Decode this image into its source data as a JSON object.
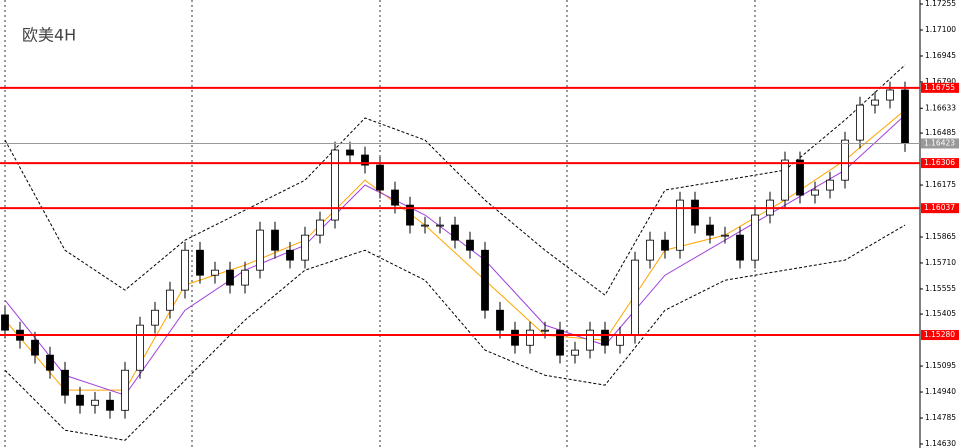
{
  "chart_data": {
    "type": "candlestick",
    "title": "欧美4H",
    "ylim": [
      1.14606,
      1.17279
    ],
    "yticks": [
      1.17255,
      {
        "value": 1.171,
        "label": "1.17100"
      },
      1.16945,
      {
        "value": 1.1679,
        "label": "1.16790"
      },
      1.16633,
      1.16485,
      1.16175,
      1.15865,
      {
        "value": 1.1571,
        "label": "1.15710"
      },
      1.15555,
      1.15405,
      1.15095,
      {
        "value": 1.1494,
        "label": "1.14940"
      },
      1.14785,
      {
        "value": 1.1463,
        "label": "1.14630"
      }
    ],
    "grid": true,
    "up_color": "#ffffff",
    "down_color": "#000000",
    "wick_color": "#000000",
    "open": [
      1.154,
      1.15309,
      1.15249,
      1.1516,
      1.1507,
      1.14921,
      1.14861,
      1.14891,
      1.14831,
      1.1507,
      1.15339,
      1.15428,
      1.15548,
      1.15786,
      1.15637,
      1.15667,
      1.15578,
      1.15667,
      1.15906,
      1.15786,
      1.15727,
      1.15876,
      1.15966,
      1.16384,
      1.16354,
      1.16294,
      1.16145,
      1.16055,
      1.15936,
      1.15936,
      1.15936,
      1.15846,
      1.15786,
      1.15428,
      1.15309,
      1.15219,
      1.15309,
      1.15309,
      1.1516,
      1.1519,
      1.15309,
      1.15219,
      1.15279,
      1.15727,
      1.15846,
      1.15786,
      1.16085,
      1.15936,
      1.15876,
      1.15876,
      1.15727,
      1.15996,
      1.16085,
      1.16324,
      1.16115,
      1.16145,
      1.16204,
      1.16443,
      1.16652,
      1.16682,
      1.16742
    ],
    "high": [
      1.1545,
      1.15359,
      1.15299,
      1.1521,
      1.1512,
      1.14971,
      1.14941,
      1.14941,
      1.1512,
      1.15389,
      1.15478,
      1.15598,
      1.15836,
      1.15836,
      1.15717,
      1.15717,
      1.15717,
      1.15956,
      1.15956,
      1.15836,
      1.15926,
      1.16016,
      1.16434,
      1.16434,
      1.16404,
      1.16344,
      1.16195,
      1.16105,
      1.15986,
      1.15986,
      1.15986,
      1.15896,
      1.15836,
      1.15478,
      1.15359,
      1.15359,
      1.15359,
      1.15359,
      1.1524,
      1.15359,
      1.15359,
      1.15329,
      1.15777,
      1.15896,
      1.15896,
      1.16135,
      1.16135,
      1.15986,
      1.15926,
      1.15926,
      1.16046,
      1.16135,
      1.16374,
      1.16374,
      1.16195,
      1.16254,
      1.16493,
      1.16702,
      1.16732,
      1.16792,
      1.16792
    ],
    "low": [
      1.15259,
      1.15199,
      1.1511,
      1.1502,
      1.14871,
      1.14811,
      1.14811,
      1.14781,
      1.14781,
      1.1502,
      1.15289,
      1.15378,
      1.15498,
      1.15587,
      1.15587,
      1.15528,
      1.15528,
      1.15617,
      1.15736,
      1.15677,
      1.15677,
      1.15826,
      1.15916,
      1.16304,
      1.16244,
      1.16095,
      1.16005,
      1.15886,
      1.15886,
      1.15886,
      1.15796,
      1.15736,
      1.15378,
      1.15259,
      1.15169,
      1.15169,
      1.15259,
      1.1511,
      1.1511,
      1.1514,
      1.15169,
      1.15169,
      1.15229,
      1.15677,
      1.15736,
      1.15736,
      1.15886,
      1.15826,
      1.15826,
      1.15677,
      1.15677,
      1.15946,
      1.16035,
      1.16065,
      1.16065,
      1.16095,
      1.16154,
      1.16393,
      1.16602,
      1.16632,
      1.16373
    ],
    "close": [
      1.15309,
      1.15249,
      1.1516,
      1.1507,
      1.14921,
      1.14861,
      1.14891,
      1.14831,
      1.1507,
      1.15339,
      1.15428,
      1.15548,
      1.15786,
      1.15637,
      1.15667,
      1.15578,
      1.15667,
      1.15906,
      1.15786,
      1.15727,
      1.15876,
      1.15966,
      1.16384,
      1.16354,
      1.16294,
      1.16145,
      1.16055,
      1.15936,
      1.15936,
      1.15936,
      1.15846,
      1.15786,
      1.15428,
      1.15309,
      1.15219,
      1.15309,
      1.15309,
      1.1516,
      1.1519,
      1.15309,
      1.15219,
      1.15279,
      1.15727,
      1.15846,
      1.15786,
      1.16085,
      1.15936,
      1.15876,
      1.15876,
      1.15727,
      1.15996,
      1.16085,
      1.16324,
      1.16115,
      1.16145,
      1.16204,
      1.16443,
      1.16652,
      1.16682,
      1.16742,
      1.16423
    ],
    "overlays": [
      {
        "color": "#000000",
        "dashed": true,
        "x": [
          0,
          4,
          8,
          12,
          16,
          20,
          24,
          28,
          32,
          36,
          40,
          44,
          48,
          52,
          56,
          60
        ],
        "values": [
          1.16443,
          1.15786,
          1.15548,
          1.15846,
          1.16025,
          1.16204,
          1.16575,
          1.16443,
          1.16085,
          1.15786,
          1.15518,
          1.16145,
          1.16204,
          1.16264,
          1.16563,
          1.16891
        ]
      },
      {
        "color": "#000000",
        "dashed": true,
        "x": [
          0,
          4,
          8,
          12,
          16,
          20,
          24,
          28,
          32,
          36,
          40,
          44,
          48,
          52,
          56,
          60
        ],
        "values": [
          1.1507,
          1.14712,
          1.14652,
          1.1501,
          1.15369,
          1.15667,
          1.15786,
          1.15607,
          1.1519,
          1.1504,
          1.14981,
          1.15428,
          1.15607,
          1.15667,
          1.15727,
          1.15936
        ]
      },
      {
        "color": "#ffa500",
        "dashed": false,
        "x": [
          0,
          4,
          8,
          12,
          16,
          20,
          24,
          28,
          32,
          36,
          40,
          44,
          48,
          52,
          56,
          60
        ],
        "values": [
          1.15369,
          1.14951,
          1.14951,
          1.15578,
          1.15697,
          1.15846,
          1.16204,
          1.15936,
          1.15607,
          1.15279,
          1.15249,
          1.15786,
          1.15876,
          1.16085,
          1.16324,
          1.16622
        ]
      },
      {
        "color": "#a040e0",
        "dashed": false,
        "x": [
          0,
          4,
          8,
          12,
          16,
          20,
          24,
          28,
          32,
          36,
          40,
          44,
          48,
          52,
          56,
          60
        ],
        "values": [
          1.15488,
          1.1504,
          1.14921,
          1.15428,
          1.15667,
          1.15816,
          1.16175,
          1.15996,
          1.15727,
          1.15339,
          1.15219,
          1.15637,
          1.15846,
          1.16055,
          1.16264,
          1.16592
        ]
      }
    ],
    "levels": [
      {
        "value": 1.16755,
        "label": "1.16755",
        "color": "#ff0000"
      },
      {
        "value": 1.16306,
        "label": "1.16306",
        "color": "#ff0000"
      },
      {
        "value": 1.16037,
        "label": "1.16037",
        "color": "#ff0000"
      },
      {
        "value": 1.1528,
        "label": "1.15280",
        "color": "#ff0000"
      }
    ],
    "current_price": {
      "value": 1.16423,
      "label": "1.16423",
      "color": "#999999"
    }
  }
}
